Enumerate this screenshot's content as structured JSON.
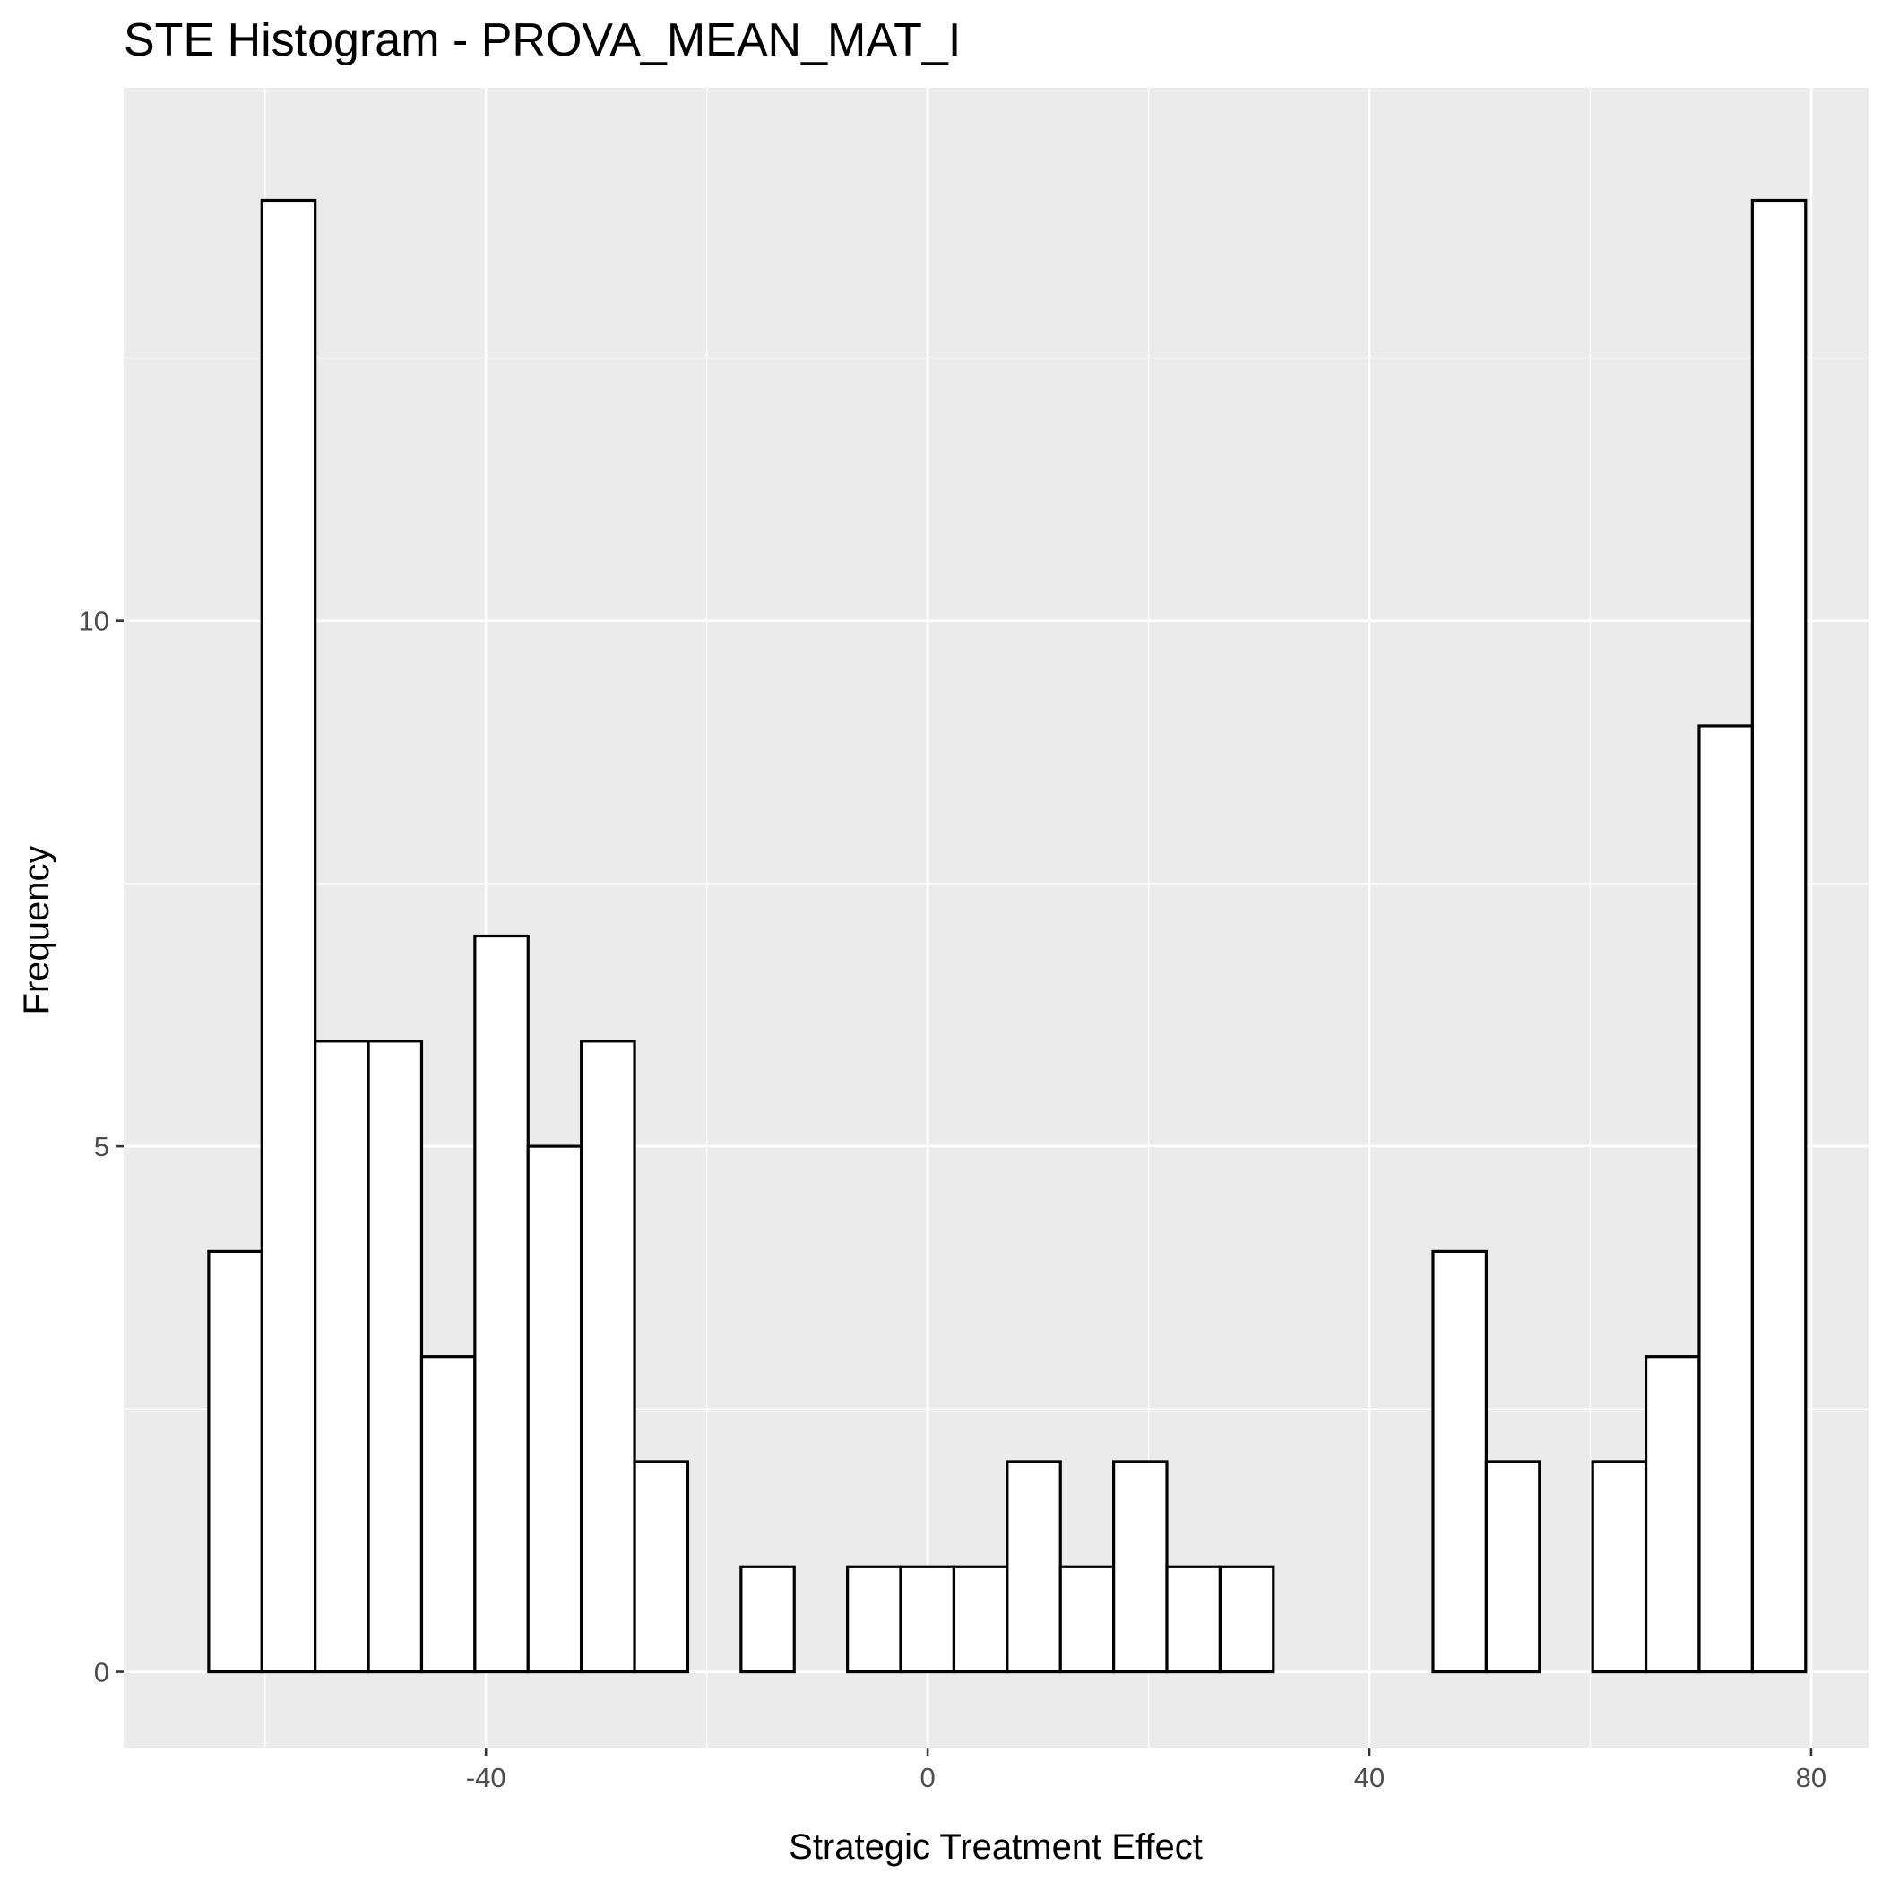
{
  "chart_data": {
    "type": "bar",
    "title": "STE Histogram -  PROVA_MEAN_MAT_I",
    "xlabel": "Strategic Treatment Effect",
    "ylabel": "Frequency",
    "xlim": [
      -72.8,
      85.2
    ],
    "ylim": [
      -0.72,
      15.07
    ],
    "x_ticks": [
      -40,
      0,
      40,
      80
    ],
    "y_ticks": [
      0,
      5,
      10
    ],
    "x_minor_grid": [
      -60,
      -20,
      20,
      60
    ],
    "y_minor_grid": [
      2.5,
      7.5,
      12.5
    ],
    "bin_width": 4.82,
    "bins": [
      {
        "start": -65.1,
        "end": -60.28,
        "count": 4
      },
      {
        "start": -60.28,
        "end": -55.46,
        "count": 14
      },
      {
        "start": -55.46,
        "end": -50.64,
        "count": 6
      },
      {
        "start": -50.64,
        "end": -45.82,
        "count": 6
      },
      {
        "start": -45.82,
        "end": -41.0,
        "count": 3
      },
      {
        "start": -41.0,
        "end": -36.18,
        "count": 7
      },
      {
        "start": -36.18,
        "end": -31.36,
        "count": 5
      },
      {
        "start": -31.36,
        "end": -26.54,
        "count": 6
      },
      {
        "start": -26.54,
        "end": -21.72,
        "count": 2
      },
      {
        "start": -21.72,
        "end": -16.9,
        "count": 0
      },
      {
        "start": -16.9,
        "end": -12.08,
        "count": 1
      },
      {
        "start": -12.08,
        "end": -7.26,
        "count": 0
      },
      {
        "start": -7.26,
        "end": -2.44,
        "count": 1
      },
      {
        "start": -2.44,
        "end": 2.38,
        "count": 1
      },
      {
        "start": 2.38,
        "end": 7.2,
        "count": 1
      },
      {
        "start": 7.2,
        "end": 12.02,
        "count": 2
      },
      {
        "start": 12.02,
        "end": 16.84,
        "count": 1
      },
      {
        "start": 16.84,
        "end": 21.66,
        "count": 2
      },
      {
        "start": 21.66,
        "end": 26.48,
        "count": 1
      },
      {
        "start": 26.48,
        "end": 31.3,
        "count": 1
      },
      {
        "start": 31.3,
        "end": 36.12,
        "count": 0
      },
      {
        "start": 36.12,
        "end": 40.94,
        "count": 0
      },
      {
        "start": 40.94,
        "end": 45.76,
        "count": 0
      },
      {
        "start": 45.76,
        "end": 50.58,
        "count": 4
      },
      {
        "start": 50.58,
        "end": 55.4,
        "count": 2
      },
      {
        "start": 55.4,
        "end": 60.22,
        "count": 0
      },
      {
        "start": 60.22,
        "end": 65.04,
        "count": 2
      },
      {
        "start": 65.04,
        "end": 69.86,
        "count": 3
      },
      {
        "start": 69.86,
        "end": 74.68,
        "count": 9
      },
      {
        "start": 74.68,
        "end": 79.5,
        "count": 14
      }
    ],
    "grid": true,
    "colors": {
      "panel_background": "#ebebeb",
      "grid_line": "#ffffff",
      "bar_fill": "#ffffff",
      "bar_outline": "#000000",
      "tick_text": "#4d4d4d"
    }
  }
}
